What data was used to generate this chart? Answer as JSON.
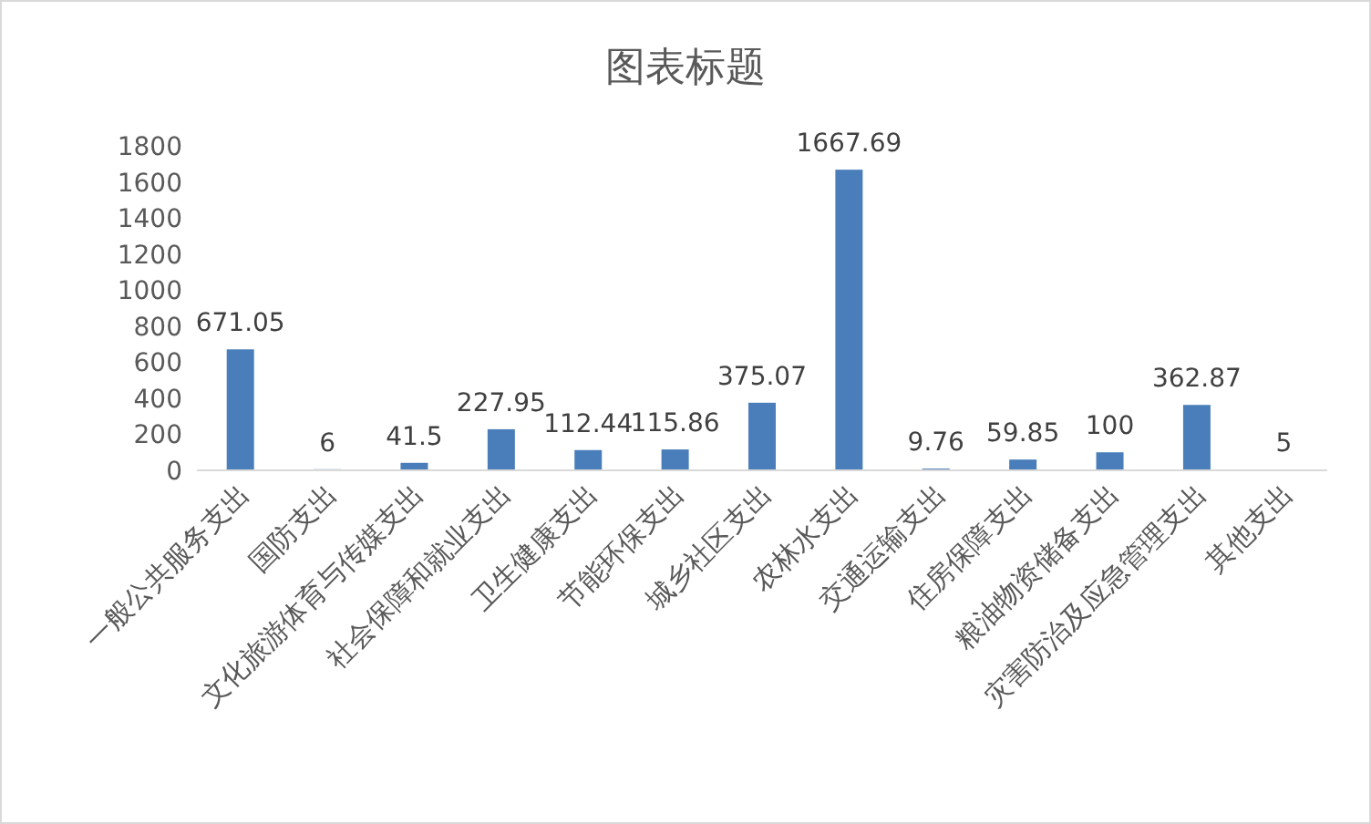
{
  "chart_data": {
    "type": "bar",
    "title": "图表标题",
    "categories": [
      "一般公共服务支出",
      "国防支出",
      "文化旅游体育与传媒支出",
      "社会保障和就业支出",
      "卫生健康支出",
      "节能环保支出",
      "城乡社区支出",
      "农林水支出",
      "交通运输支出",
      "住房保障支出",
      "粮油物资储备支出",
      "灾害防治及应急管理支出",
      "其他支出"
    ],
    "values": [
      671.05,
      6,
      41.5,
      227.95,
      112.44,
      115.86,
      375.07,
      1667.69,
      9.76,
      59.85,
      100,
      362.87,
      5
    ],
    "color": "#4a7ebb",
    "ylim": [
      0,
      1800
    ],
    "yticks": [
      0,
      200,
      400,
      600,
      800,
      1000,
      1200,
      1400,
      1600,
      1800
    ],
    "data_labels": true
  }
}
